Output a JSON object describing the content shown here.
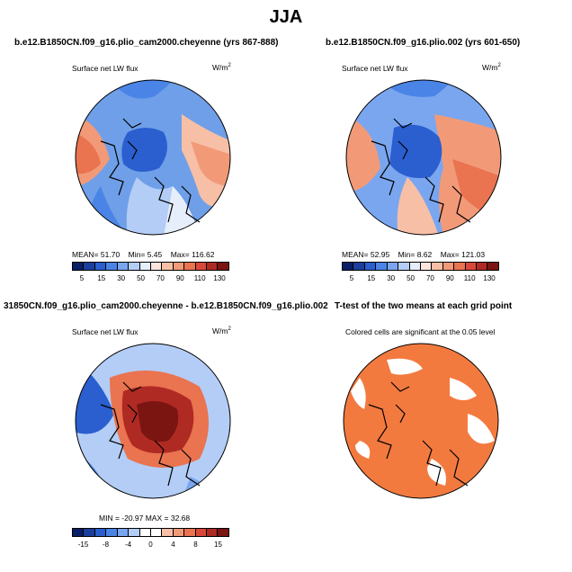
{
  "main_title": "JJA",
  "panels": {
    "p1": {
      "title": "b.e12.B1850CN.f09_g16.plio_cam2000.cheyenne (yrs 867-888)",
      "left_label": "Surface net LW flux",
      "units": "W/m",
      "units_sup": "2",
      "stats": {
        "mean_label": "MEAN=",
        "mean": "51.70",
        "min_label": "Min=",
        "min": "5.45",
        "max_label": "Max=",
        "max": "116.62"
      },
      "colorbar": {
        "colors": [
          "#0b1f66",
          "#1b3f9c",
          "#2b5fcf",
          "#4a84e6",
          "#7aa6f0",
          "#b3cdf6",
          "#e6eefb",
          "#fbe5dc",
          "#f7c0a6",
          "#f29a78",
          "#ea7350",
          "#d9483a",
          "#b02a24",
          "#7b1512"
        ],
        "tick_labels": [
          "5",
          "15",
          "30",
          "50",
          "70",
          "90",
          "110",
          "130"
        ]
      }
    },
    "p2": {
      "title": "b.e12.B1850CN.f09_g16.plio.002 (yrs 601-650)",
      "left_label": "Surface net LW flux",
      "units": "W/m",
      "units_sup": "2",
      "stats": {
        "mean_label": "MEAN=",
        "mean": "52.95",
        "min_label": "Min=",
        "min": "8.62",
        "max_label": "Max=",
        "max": "121.03"
      },
      "colorbar": {
        "colors": [
          "#0b1f66",
          "#1b3f9c",
          "#2b5fcf",
          "#4a84e6",
          "#7aa6f0",
          "#b3cdf6",
          "#e6eefb",
          "#fbe5dc",
          "#f7c0a6",
          "#f29a78",
          "#ea7350",
          "#d9483a",
          "#b02a24",
          "#7b1512"
        ],
        "tick_labels": [
          "5",
          "15",
          "30",
          "50",
          "70",
          "90",
          "110",
          "130"
        ]
      }
    },
    "p3": {
      "title": "31850CN.f09_g16.plio_cam2000.cheyenne - b.e12.B1850CN.f09_g16.plio.002",
      "left_label": "Surface net LW flux",
      "units": "W/m",
      "units_sup": "2",
      "stats": {
        "text": "MIN = -20.97  MAX =  32.68"
      },
      "colorbar": {
        "colors": [
          "#0b1f66",
          "#1b3f9c",
          "#2b5fcf",
          "#4a84e6",
          "#7aa6f0",
          "#b3cdf6",
          "#ffffff",
          "#ffffff",
          "#f7c0a6",
          "#f29a78",
          "#ea7350",
          "#d9483a",
          "#b02a24",
          "#7b1512"
        ],
        "tick_labels": [
          "-15",
          "-8",
          "-4",
          "0",
          "4",
          "8",
          "15"
        ]
      }
    },
    "p4": {
      "title": "T-test of the two means at each grid point",
      "subtitle": "Colored cells are significant at the 0.05 level"
    }
  },
  "colors": {
    "significant_fill": "#f37a3f",
    "coast_line": "#000000"
  }
}
